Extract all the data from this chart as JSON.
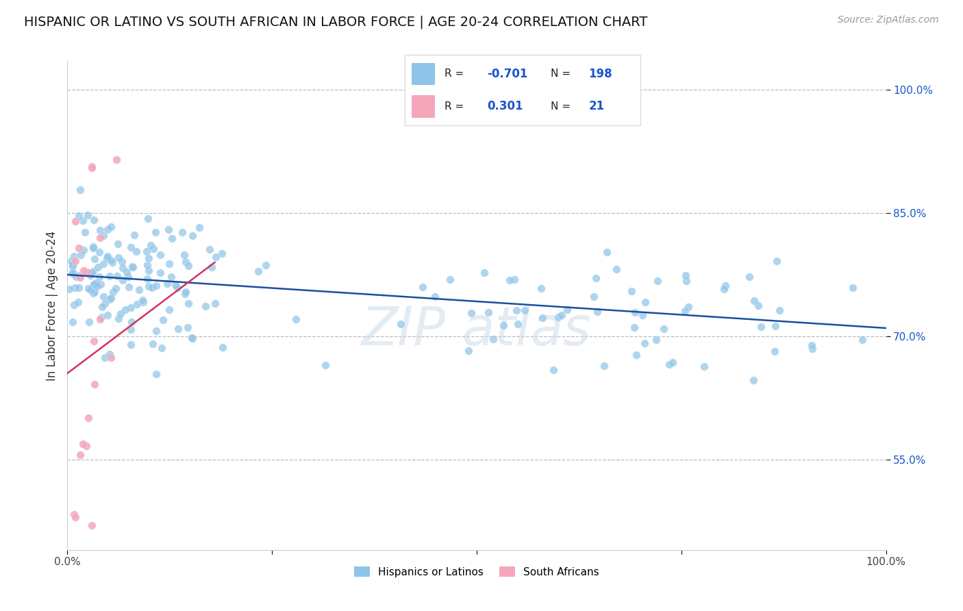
{
  "title": "HISPANIC OR LATINO VS SOUTH AFRICAN IN LABOR FORCE | AGE 20-24 CORRELATION CHART",
  "source": "Source: ZipAtlas.com",
  "ylabel": "In Labor Force | Age 20-24",
  "xlim": [
    0,
    1
  ],
  "ylim": [
    0.44,
    1.035
  ],
  "y_ticks": [
    0.55,
    0.7,
    0.85,
    1.0
  ],
  "y_tick_labels": [
    "55.0%",
    "70.0%",
    "85.0%",
    "100.0%"
  ],
  "blue_color": "#8ec4e8",
  "pink_color": "#f4a7bb",
  "trend_blue": "#1a4fa0",
  "trend_pink": "#d43060",
  "R_blue": -0.701,
  "N_blue": 198,
  "R_pink": 0.301,
  "N_pink": 21,
  "legend_color": "#1a55cc",
  "grid_color": "#bbbbbb",
  "title_fontsize": 14,
  "axis_label_fontsize": 12,
  "tick_fontsize": 11,
  "background_color": "#ffffff",
  "blue_trend_x0": 0.0,
  "blue_trend_y0": 0.775,
  "blue_trend_x1": 1.0,
  "blue_trend_y1": 0.71,
  "pink_trend_x0": 0.0,
  "pink_trend_y0": 0.655,
  "pink_trend_x1": 0.18,
  "pink_trend_y1": 0.79
}
